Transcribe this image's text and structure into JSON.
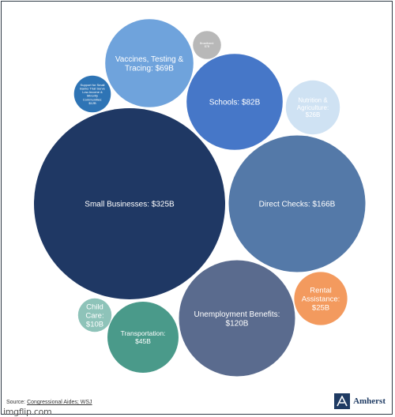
{
  "chart_data": {
    "type": "bubble",
    "title": "",
    "bubbles": [
      {
        "label": "Small Businesses: $325B",
        "value": 325,
        "color": "#1f3864"
      },
      {
        "label": "Direct Checks: $166B",
        "value": 166,
        "color": "#5479a8"
      },
      {
        "label": "Unemployment Benefits: $120B",
        "value": 120,
        "color": "#5a6b8e"
      },
      {
        "label": "Schools: $82B",
        "value": 82,
        "color": "#4677c8"
      },
      {
        "label": "Vaccines, Testing & Tracing: $69B",
        "value": 69,
        "color": "#6fa3dc"
      },
      {
        "label": "Transportation: $45B",
        "value": 45,
        "color": "#4a9a8a"
      },
      {
        "label": "Nutrition & Agriculture: $26B",
        "value": 26,
        "color": "#cfe2f3"
      },
      {
        "label": "Rental Assistance: $25B",
        "value": 25,
        "color": "#f39a5e"
      },
      {
        "label": "Support for Small Banks That Serve Low-Income & Minority Communities: $12B",
        "value": 12,
        "color": "#2e74b5"
      },
      {
        "label": "Child Care: $10B",
        "value": 10,
        "color": "#8ec3b9"
      },
      {
        "label": "Broadband: $7B",
        "value": 7,
        "color": "#b8b8b8"
      }
    ]
  },
  "footer": {
    "source_prefix": "Source: ",
    "source_link": "Congressional Aides; WSJ",
    "watermark": "imgflip.com",
    "brand_name": "Amherst",
    "brand_logo": "amherst-logo-icon"
  }
}
